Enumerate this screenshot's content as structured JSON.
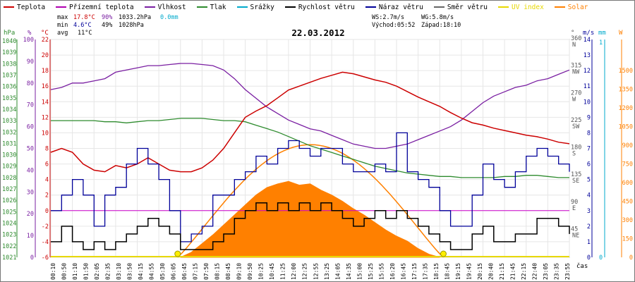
{
  "chart_data": {
    "type": "line",
    "title": "22.03.2012",
    "legend": [
      {
        "name": "Teplota",
        "color": "#cc0000"
      },
      {
        "name": "Přízemní teplota",
        "color": "#b000b0"
      },
      {
        "name": "Vlhkost",
        "color": "#7a1fa2"
      },
      {
        "name": "Tlak",
        "color": "#2e8b2e"
      },
      {
        "name": "Srážky",
        "color": "#00aacc"
      },
      {
        "name": "Rychlost větru",
        "color": "#000000"
      },
      {
        "name": "Náraz větru",
        "color": "#000099"
      },
      {
        "name": "Směr větru",
        "color": "#666666"
      },
      {
        "name": "UV index",
        "color": "#e8d800"
      },
      {
        "name": "Solar",
        "color": "#ff8000"
      }
    ],
    "stats": {
      "max_label": "max",
      "max_temp": "17.8°C",
      "max_hum": "90%",
      "max_press": "1033.2hPa",
      "rain": "0.0mm",
      "min_label": "min",
      "min_temp": "4.6°C",
      "min_hum": "49%",
      "min_press": "1028hPa",
      "avg_label": "avg",
      "avg_temp": "11°C",
      "ws": "WS:2.7m/s",
      "wg": "WG:5.8m/s",
      "sunrise": "Východ:05:52",
      "sunset": "Západ:18:10"
    },
    "axes": {
      "hpa_title": "hPa",
      "pct_title": "%",
      "temp_title": "°C",
      "dir_title": "°",
      "ms_title": "m/s",
      "mm_title": "mm",
      "w_title": "W",
      "time_title": "čas",
      "hpa_ticks": [
        "1040",
        "1039",
        "1038",
        "1037",
        "1036",
        "1035",
        "1034",
        "1033",
        "1032",
        "1031",
        "1030",
        "1029",
        "1028",
        "1027",
        "1026",
        "1025",
        "1024",
        "1023",
        "1022",
        "1021"
      ],
      "pct_ticks": [
        "100",
        "90",
        "80",
        "70",
        "60",
        "50",
        "40",
        "30",
        "20",
        "10",
        "0"
      ],
      "temp_ticks": [
        "22",
        "20",
        "18",
        "16",
        "14",
        "12",
        "10",
        "8",
        "6",
        "4",
        "2",
        "0",
        "-2",
        "-4",
        "-6"
      ],
      "temp_range": [
        -6,
        22
      ],
      "dir_ticks": [
        {
          "deg": "360",
          "lab": "N",
          "v": 360
        },
        {
          "deg": "315",
          "lab": "NW",
          "v": 315
        },
        {
          "deg": "270",
          "lab": "W",
          "v": 270
        },
        {
          "deg": "225",
          "lab": "SW",
          "v": 225
        },
        {
          "deg": "180",
          "lab": "S",
          "v": 180
        },
        {
          "deg": "135",
          "lab": "SE",
          "v": 135
        },
        {
          "deg": "90",
          "lab": "E",
          "v": 90
        },
        {
          "deg": "45",
          "lab": "NE",
          "v": 45
        }
      ],
      "dir_range": [
        0,
        360
      ],
      "ms_ticks": [
        "14",
        "13",
        "12",
        "11",
        "10",
        "9",
        "8",
        "7",
        "6",
        "5",
        "4",
        "3",
        "2",
        "1",
        "0"
      ],
      "ms_range": [
        0,
        14
      ],
      "mm_ticks": [
        "1",
        "0"
      ],
      "w_ticks": [
        "1500",
        "1350",
        "1200",
        "1050",
        "900",
        "750",
        "600",
        "450",
        "300",
        "150",
        "0"
      ],
      "w_range": [
        0,
        1750
      ],
      "time_labels": [
        "00:10",
        "00:50",
        "01:10",
        "01:50",
        "02:05",
        "02:35",
        "03:10",
        "03:50",
        "04:15",
        "04:55",
        "05:30",
        "06:05",
        "06:45",
        "07:15",
        "07:50",
        "08:15",
        "08:45",
        "09:10",
        "09:50",
        "10:25",
        "10:45",
        "11:25",
        "12:00",
        "12:25",
        "12:55",
        "13:25",
        "14:05",
        "14:35",
        "15:00",
        "15:25",
        "15:55",
        "16:20",
        "16:45",
        "17:15",
        "17:35",
        "18:15",
        "18:45",
        "19:15",
        "19:45",
        "20:15",
        "20:40",
        "21:15",
        "21:45",
        "22:15",
        "22:40",
        "23:05",
        "23:35",
        "23:55"
      ]
    },
    "reference_lines": [
      {
        "name": "0 °C",
        "y": 0,
        "color": "#cc00cc"
      }
    ],
    "series": [
      {
        "name": "Teplota",
        "unit": "°C",
        "x_hours": [
          0,
          0.5,
          1,
          1.5,
          2,
          2.5,
          3,
          3.5,
          4,
          4.5,
          5,
          5.5,
          6,
          6.5,
          7,
          7.5,
          8,
          8.5,
          9,
          9.5,
          10,
          10.5,
          11,
          11.5,
          12,
          12.5,
          13,
          13.5,
          14,
          14.5,
          15,
          15.5,
          16,
          16.5,
          17,
          17.5,
          18,
          18.5,
          19,
          19.5,
          20,
          20.5,
          21,
          21.5,
          22,
          22.5,
          23,
          23.5,
          24
        ],
        "values": [
          7.5,
          8,
          7.5,
          6,
          5.2,
          5,
          5.8,
          5.5,
          6,
          6.8,
          6,
          5.2,
          5,
          5,
          5.5,
          6.5,
          8,
          10,
          12,
          12.8,
          13.5,
          14.5,
          15.5,
          16,
          16.5,
          17,
          17.4,
          17.8,
          17.6,
          17.2,
          16.8,
          16.5,
          16,
          15.3,
          14.6,
          14,
          13.4,
          12.6,
          11.9,
          11.3,
          11,
          10.6,
          10.3,
          10,
          9.7,
          9.5,
          9.2,
          8.8,
          8.6
        ]
      },
      {
        "name": "Vlhkost",
        "unit": "%",
        "x_hours": [
          0,
          0.5,
          1,
          1.5,
          2,
          2.5,
          3,
          3.5,
          4,
          4.5,
          5,
          5.5,
          6,
          6.5,
          7,
          7.5,
          8,
          8.5,
          9,
          9.5,
          10,
          10.5,
          11,
          11.5,
          12,
          12.5,
          13,
          13.5,
          14,
          14.5,
          15,
          15.5,
          16,
          16.5,
          17,
          17.5,
          18,
          18.5,
          19,
          19.5,
          20,
          20.5,
          21,
          21.5,
          22,
          22.5,
          23,
          23.5,
          24
        ],
        "values": [
          77,
          78,
          80,
          80,
          81,
          82,
          85,
          86,
          87,
          88,
          88,
          88.5,
          89,
          89,
          88.5,
          88,
          86,
          82,
          77,
          73,
          69,
          66,
          63,
          61,
          59,
          58,
          56,
          54,
          52,
          51,
          50,
          50,
          51,
          52,
          54,
          56,
          58,
          60,
          63,
          67,
          71,
          74,
          76,
          78,
          79,
          81,
          82,
          84,
          86
        ]
      },
      {
        "name": "Tlak",
        "unit": "hPa",
        "x_hours": [
          0,
          0.5,
          1,
          1.5,
          2,
          2.5,
          3,
          3.5,
          4,
          4.5,
          5,
          5.5,
          6,
          6.5,
          7,
          7.5,
          8,
          8.5,
          9,
          9.5,
          10,
          10.5,
          11,
          11.5,
          12,
          12.5,
          13,
          13.5,
          14,
          14.5,
          15,
          15.5,
          16,
          16.5,
          17,
          17.5,
          18,
          18.5,
          19,
          19.5,
          20,
          20.5,
          21,
          21.5,
          22,
          22.5,
          23,
          23.5,
          24
        ],
        "values": [
          1033,
          1033,
          1033,
          1033,
          1033,
          1032.9,
          1032.9,
          1032.8,
          1032.9,
          1033,
          1033,
          1033.1,
          1033.2,
          1033.2,
          1033.2,
          1033.1,
          1033,
          1033,
          1032.9,
          1032.6,
          1032.3,
          1032,
          1031.6,
          1031.2,
          1030.8,
          1030.5,
          1030.2,
          1029.9,
          1029.6,
          1029.3,
          1029,
          1028.8,
          1028.6,
          1028.4,
          1028.3,
          1028.2,
          1028.1,
          1028.1,
          1028,
          1028,
          1028,
          1028,
          1028.1,
          1028.1,
          1028.2,
          1028.2,
          1028.1,
          1028,
          1028
        ]
      },
      {
        "name": "Rychlost větru",
        "unit": "m/s",
        "x_hours": [
          0,
          0.5,
          1,
          1.5,
          2,
          2.5,
          3,
          3.5,
          4,
          4.5,
          5,
          5.5,
          6,
          6.5,
          7,
          7.5,
          8,
          8.5,
          9,
          9.5,
          10,
          10.5,
          11,
          11.5,
          12,
          12.5,
          13,
          13.5,
          14,
          14.5,
          15,
          15.5,
          16,
          16.5,
          17,
          17.5,
          18,
          18.5,
          19,
          19.5,
          20,
          20.5,
          21,
          21.5,
          22,
          22.5,
          23,
          23.5,
          24
        ],
        "values": [
          1,
          2,
          1,
          0.5,
          1,
          0.5,
          1,
          1.5,
          2,
          2.5,
          2,
          1.5,
          0.5,
          0.5,
          0.5,
          1,
          1.5,
          2.5,
          3,
          3.5,
          3,
          3.5,
          3,
          3.5,
          3,
          3.5,
          3,
          2.5,
          2,
          2.5,
          3,
          2.5,
          3,
          2.5,
          2,
          1.5,
          1,
          0.5,
          0.5,
          1.5,
          2,
          1,
          1,
          1.5,
          1.5,
          2.5,
          2.5,
          2,
          1.5
        ]
      },
      {
        "name": "Náraz větru",
        "unit": "m/s",
        "x_hours": [
          0,
          0.5,
          1,
          1.5,
          2,
          2.5,
          3,
          3.5,
          4,
          4.5,
          5,
          5.5,
          6,
          6.5,
          7,
          7.5,
          8,
          8.5,
          9,
          9.5,
          10,
          10.5,
          11,
          11.5,
          12,
          12.5,
          13,
          13.5,
          14,
          14.5,
          15,
          15.5,
          16,
          16.5,
          17,
          17.5,
          18,
          18.5,
          19,
          19.5,
          20,
          20.5,
          21,
          21.5,
          22,
          22.5,
          23,
          23.5,
          24
        ],
        "values": [
          3,
          4,
          5,
          4,
          2,
          4,
          4.5,
          6,
          7,
          6,
          5,
          3,
          1,
          1.5,
          2,
          4,
          4,
          5,
          5.5,
          6.5,
          6,
          7,
          7.5,
          7,
          6.5,
          7,
          7,
          6,
          5.5,
          5.5,
          6,
          5.5,
          8,
          5.5,
          5,
          4.5,
          3,
          2,
          2,
          4,
          6,
          5,
          4.5,
          5.5,
          6.5,
          7,
          6.5,
          6,
          5.5
        ]
      },
      {
        "name": "Solar",
        "unit": "W/m²",
        "x_hours": [
          6,
          6.5,
          7,
          7.5,
          8,
          8.5,
          9,
          9.5,
          10,
          10.5,
          11,
          11.5,
          12,
          12.5,
          13,
          13.5,
          14,
          14.5,
          15,
          15.5,
          16,
          16.5,
          17,
          17.5,
          18
        ],
        "values": [
          0,
          40,
          110,
          180,
          260,
          340,
          420,
          500,
          560,
          590,
          610,
          580,
          590,
          540,
          500,
          450,
          390,
          340,
          280,
          220,
          170,
          130,
          70,
          25,
          0
        ]
      }
    ],
    "solar_theoretical": {
      "name": "Solar (clear sky)",
      "x_hours": [
        5.87,
        8,
        10,
        12,
        14,
        16,
        18.17
      ],
      "values": [
        0,
        560,
        820,
        905,
        820,
        530,
        0
      ]
    }
  }
}
